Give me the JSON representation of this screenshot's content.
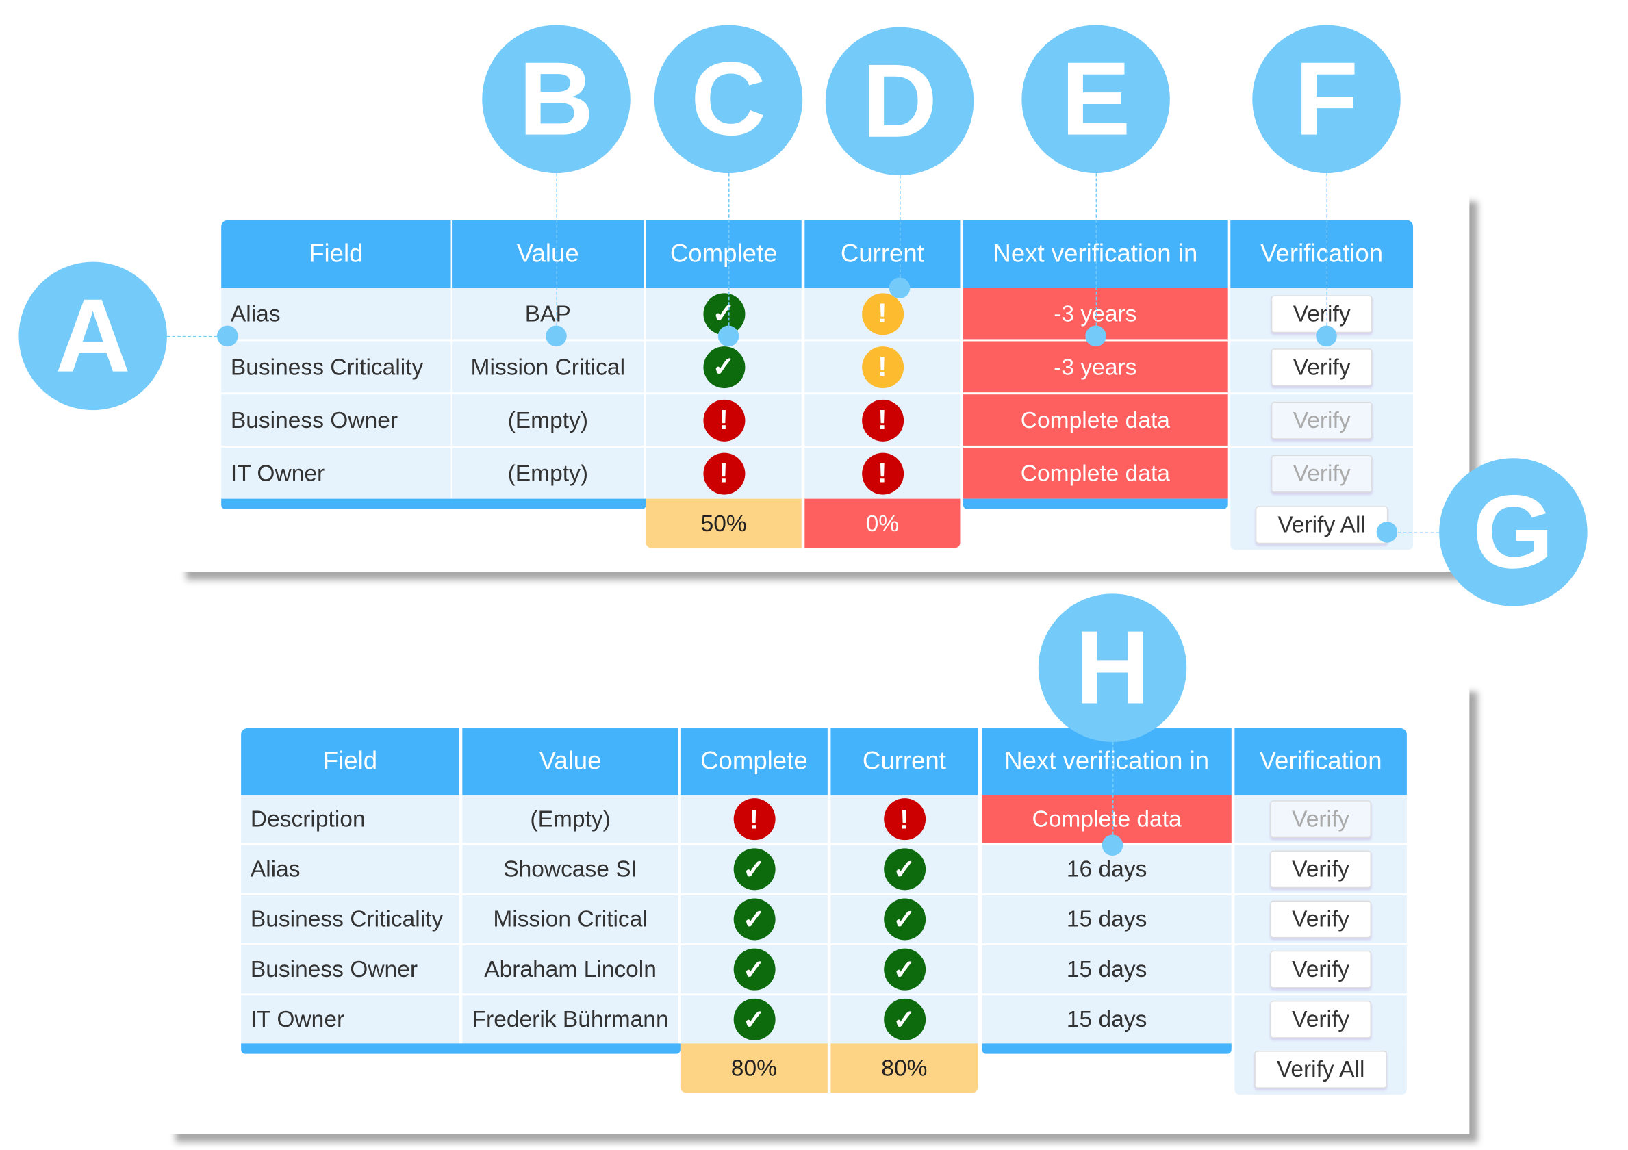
{
  "colors": {
    "header": "#45B3FB",
    "row": "#E6F3FD",
    "error_bg": "#FE5F5F",
    "warn_bg": "#FDD385",
    "ok_icon": "#0D6B0D",
    "warn_icon": "#FDBB2F",
    "err_icon": "#CC0000",
    "callout": "#74CAF9"
  },
  "callouts": [
    "A",
    "B",
    "C",
    "D",
    "E",
    "F",
    "G",
    "H"
  ],
  "tables": [
    {
      "headers": [
        "Field",
        "Value",
        "Complete",
        "Current",
        "Next verification in",
        "Verification"
      ],
      "rows": [
        {
          "field": "Alias",
          "value": "BAP",
          "complete": "check",
          "current": "warning",
          "next": "-3 years",
          "next_alert": true,
          "verify": "Verify",
          "verify_enabled": true
        },
        {
          "field": "Business Criticality",
          "value": "Mission Critical",
          "complete": "check",
          "current": "warning",
          "next": "-3 years",
          "next_alert": true,
          "verify": "Verify",
          "verify_enabled": true
        },
        {
          "field": "Business Owner",
          "value": "(Empty)",
          "complete": "error",
          "current": "error",
          "next": "Complete data",
          "next_alert": true,
          "verify": "Verify",
          "verify_enabled": false
        },
        {
          "field": "IT Owner",
          "value": "(Empty)",
          "complete": "error",
          "current": "error",
          "next": "Complete data",
          "next_alert": true,
          "verify": "Verify",
          "verify_enabled": false
        }
      ],
      "footer": {
        "complete": "50%",
        "complete_status": "warning",
        "current": "0%",
        "current_status": "error",
        "verify_all": "Verify All"
      }
    },
    {
      "headers": [
        "Field",
        "Value",
        "Complete",
        "Current",
        "Next verification in",
        "Verification"
      ],
      "rows": [
        {
          "field": "Description",
          "value": "(Empty)",
          "complete": "error",
          "current": "error",
          "next": "Complete data",
          "next_alert": true,
          "verify": "Verify",
          "verify_enabled": false
        },
        {
          "field": "Alias",
          "value": "Showcase SI",
          "complete": "check",
          "current": "check",
          "next": "16 days",
          "next_alert": false,
          "verify": "Verify",
          "verify_enabled": true
        },
        {
          "field": "Business Criticality",
          "value": "Mission Critical",
          "complete": "check",
          "current": "check",
          "next": "15 days",
          "next_alert": false,
          "verify": "Verify",
          "verify_enabled": true
        },
        {
          "field": "Business Owner",
          "value": "Abraham Lincoln",
          "complete": "check",
          "current": "check",
          "next": "15 days",
          "next_alert": false,
          "verify": "Verify",
          "verify_enabled": true
        },
        {
          "field": "IT Owner",
          "value": "Frederik Bührmann",
          "complete": "check",
          "current": "check",
          "next": "15 days",
          "next_alert": false,
          "verify": "Verify",
          "verify_enabled": true
        }
      ],
      "footer": {
        "complete": "80%",
        "complete_status": "warning",
        "current": "80%",
        "current_status": "warning",
        "verify_all": "Verify All"
      }
    }
  ]
}
